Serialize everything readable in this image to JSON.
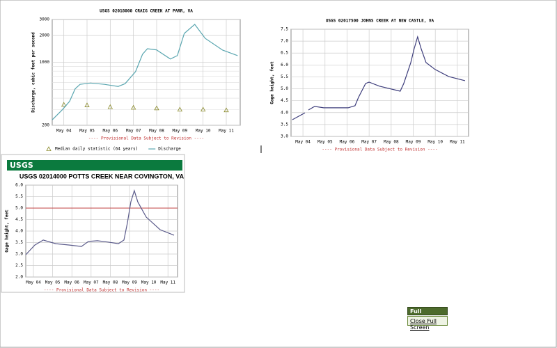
{
  "chart_data": [
    {
      "type": "line",
      "title": "USGS 02018000 CRAIG CREEK AT PARR, VA",
      "subtitle": "---- Provisional Data Subject to Revision ----",
      "ylabel": "Discharge, cubic feet per second",
      "ylog": true,
      "ylim": [
        200,
        3000
      ],
      "yticks": [
        200,
        1000,
        2000,
        3000
      ],
      "y_minor_ticks": [
        300,
        400,
        500,
        600,
        700,
        800,
        900
      ],
      "grid": true,
      "legend": "bottom",
      "xlim": [
        3.5,
        11.6
      ],
      "xticks": [
        {
          "value": 4,
          "label": "May 04"
        },
        {
          "value": 5,
          "label": "May 05"
        },
        {
          "value": 6,
          "label": "May 06"
        },
        {
          "value": 7,
          "label": "May 07"
        },
        {
          "value": 8,
          "label": "May 08"
        },
        {
          "value": 9,
          "label": "May 09"
        },
        {
          "value": 10,
          "label": "May 10"
        },
        {
          "value": 11,
          "label": "May 11"
        }
      ],
      "series": [
        {
          "name": "Median daily statistic (64 years)",
          "marker": "triangle",
          "color": "#8a8a2a",
          "x": [
            4,
            5,
            6,
            7,
            8,
            9,
            10,
            11
          ],
          "values": [
            340,
            335,
            320,
            315,
            310,
            300,
            300,
            295
          ]
        },
        {
          "name": "Discharge",
          "marker": "line",
          "color": "#5aa6b0",
          "x": [
            3.5,
            3.95,
            4.25,
            4.49,
            4.7,
            5.15,
            5.75,
            6.34,
            6.64,
            7.09,
            7.39,
            7.6,
            7.99,
            8.59,
            8.89,
            9.19,
            9.64,
            10.09,
            10.84,
            11.49
          ],
          "values": [
            230,
            300,
            370,
            510,
            570,
            590,
            570,
            540,
            580,
            790,
            1230,
            1420,
            1380,
            1090,
            1190,
            2100,
            2650,
            1850,
            1370,
            1190
          ]
        }
      ]
    },
    {
      "type": "line",
      "title": "USGS 02017500 JOHNS CREEK AT NEW CASTLE, VA",
      "subtitle": "---- Provisional Data Subject to Revision ----",
      "ylabel": "Gage height, feet",
      "ylim": [
        3.0,
        7.5
      ],
      "yticks": [
        {
          "value": 3.0,
          "label": "3.0"
        },
        3.5,
        {
          "value": 4.0,
          "label": "4.0"
        },
        4.5,
        {
          "value": 5.0,
          "label": "5.0"
        },
        5.5,
        {
          "value": 6.0,
          "label": "6.0"
        },
        6.5,
        {
          "value": 7.0,
          "label": "7.0"
        },
        7.5
      ],
      "grid": true,
      "xlim": [
        3.46,
        11.51
      ],
      "xticks": [
        {
          "value": 4,
          "label": "May 04"
        },
        {
          "value": 5,
          "label": "May 05"
        },
        {
          "value": 6,
          "label": "May 06"
        },
        {
          "value": 7,
          "label": "May 07"
        },
        {
          "value": 8,
          "label": "May 08"
        },
        {
          "value": 9,
          "label": "May 09"
        },
        {
          "value": 10,
          "label": "May 10"
        },
        {
          "value": 11,
          "label": "May 11"
        }
      ],
      "series": [
        {
          "marker": "line",
          "color": "#3b3b7a",
          "x": [
            3.52,
            4.09,
            null,
            4.25,
            4.53,
            4.94,
            6.05,
            6.36,
            6.52,
            6.84,
            7.0,
            7.47,
            8.41,
            8.57,
            8.89,
            9.04,
            9.2,
            9.36,
            9.58,
            9.99,
            10.62,
            11.35
          ],
          "values": [
            3.7,
            3.99,
            null,
            4.11,
            4.26,
            4.2,
            4.2,
            4.29,
            4.64,
            5.22,
            5.28,
            5.11,
            4.9,
            5.22,
            6.1,
            6.68,
            7.18,
            6.68,
            6.1,
            5.81,
            5.51,
            5.34
          ]
        }
      ]
    },
    {
      "type": "line",
      "title": "USGS 02014000 POTTS CREEK NEAR COVINGTON, VA",
      "subtitle": "---- Provisional Data Subject to Revision ----",
      "ylabel": "Gage height, feet",
      "ylim": [
        2.0,
        6.0
      ],
      "yticks": [
        {
          "value": 2.0,
          "label": "2.0"
        },
        2.5,
        {
          "value": 3.0,
          "label": "3.0"
        },
        3.5,
        {
          "value": 4.0,
          "label": "4.0"
        },
        4.5,
        {
          "value": 5.0,
          "label": "5.0"
        },
        5.5,
        {
          "value": 6.0,
          "label": "6.0"
        }
      ],
      "grid": true,
      "ref_line": {
        "value": 5.0,
        "color": "#c04040"
      },
      "xlim": [
        3.6,
        11.5
      ],
      "xticks": [
        {
          "value": 4,
          "label": "May 04"
        },
        {
          "value": 5,
          "label": "May 05"
        },
        {
          "value": 6,
          "label": "May 06"
        },
        {
          "value": 7,
          "label": "May 07"
        },
        {
          "value": 8,
          "label": "May 08"
        },
        {
          "value": 9,
          "label": "May 09"
        },
        {
          "value": 10,
          "label": "May 10"
        },
        {
          "value": 11,
          "label": "May 11"
        }
      ],
      "series": [
        {
          "marker": "line",
          "color": "#5a5a8a",
          "x": [
            3.6,
            4.07,
            4.51,
            5.16,
            5.88,
            6.5,
            6.86,
            7.33,
            7.88,
            8.42,
            8.71,
            8.89,
            9.07,
            9.25,
            9.43,
            9.87,
            10.59,
            11.32
          ],
          "values": [
            2.97,
            3.39,
            3.61,
            3.45,
            3.39,
            3.33,
            3.55,
            3.58,
            3.52,
            3.45,
            3.61,
            4.36,
            5.27,
            5.76,
            5.27,
            4.61,
            4.06,
            3.82
          ]
        }
      ]
    }
  ],
  "ui": {
    "logo": "USGS",
    "full_screen": "Full Screen",
    "close_full_screen": "Close Full Screen"
  }
}
